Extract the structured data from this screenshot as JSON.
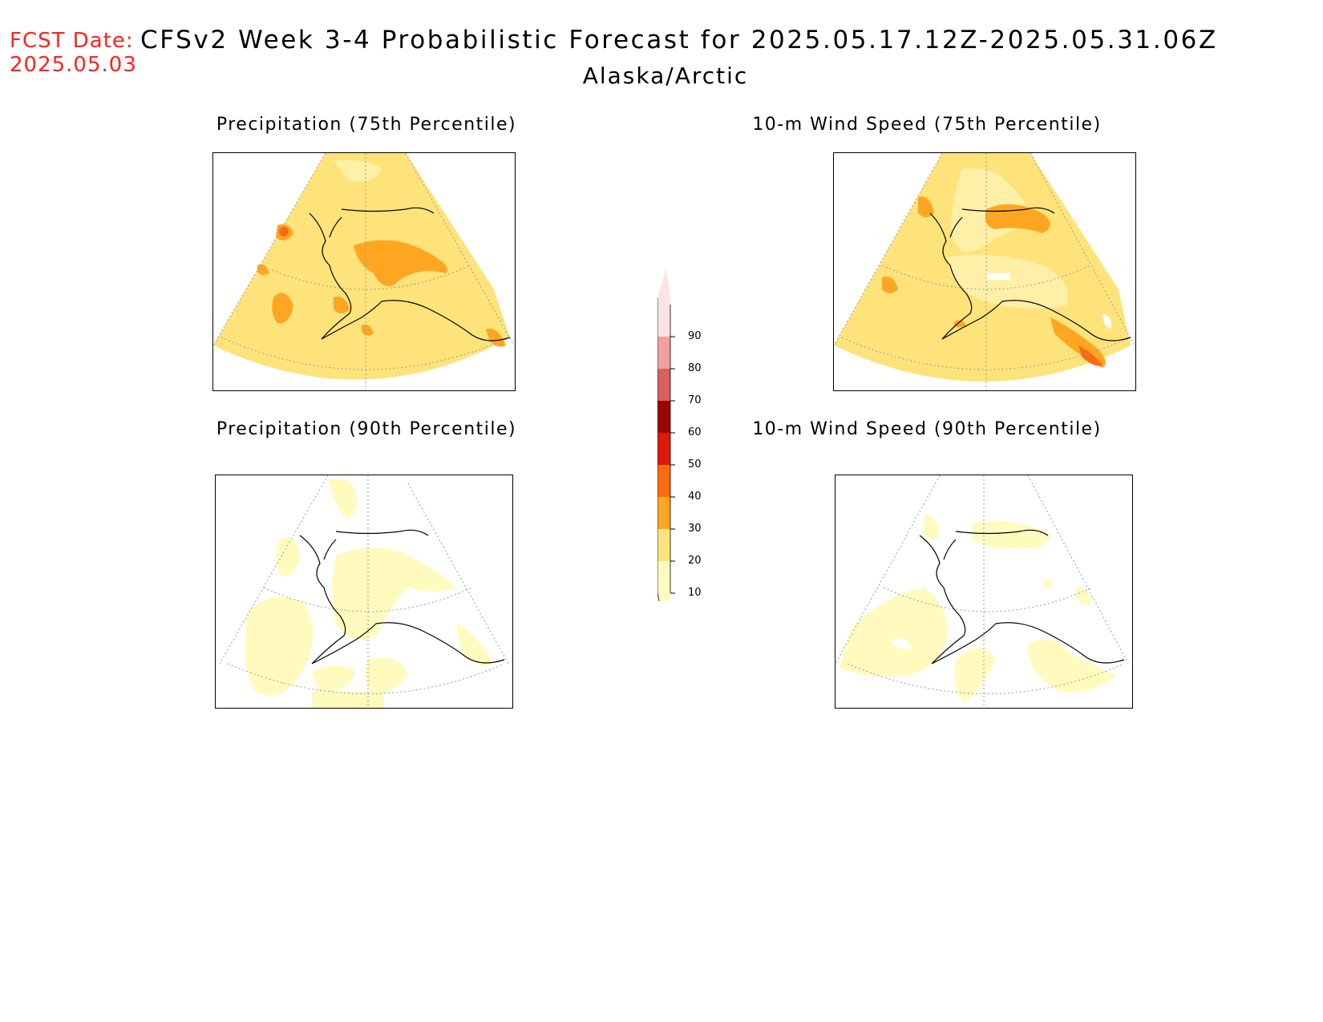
{
  "header": {
    "fcst_label": "FCST Date:",
    "fcst_date": "2025.05.03",
    "title": "CFSv2 Week 3-4 Probabilistic Forecast for 2025.05.17.12Z-2025.05.31.06Z",
    "region": "Alaska/Arctic"
  },
  "panels": [
    {
      "title": "Precipitation (75th Percentile)"
    },
    {
      "title": "10-m Wind Speed (75th Percentile)"
    },
    {
      "title": "Precipitation (90th Percentile)"
    },
    {
      "title": "10-m Wind Speed (90th Percentile)"
    }
  ],
  "colorbar": {
    "labels": [
      "10",
      "20",
      "30",
      "40",
      "50",
      "60",
      "70",
      "80",
      "90"
    ],
    "colors": [
      "#fffbbf",
      "#fde37a",
      "#fea622",
      "#fb6a10",
      "#dd1a08",
      "#9a0604",
      "#d96060",
      "#f0a0a0",
      "#fde4e4"
    ]
  }
}
